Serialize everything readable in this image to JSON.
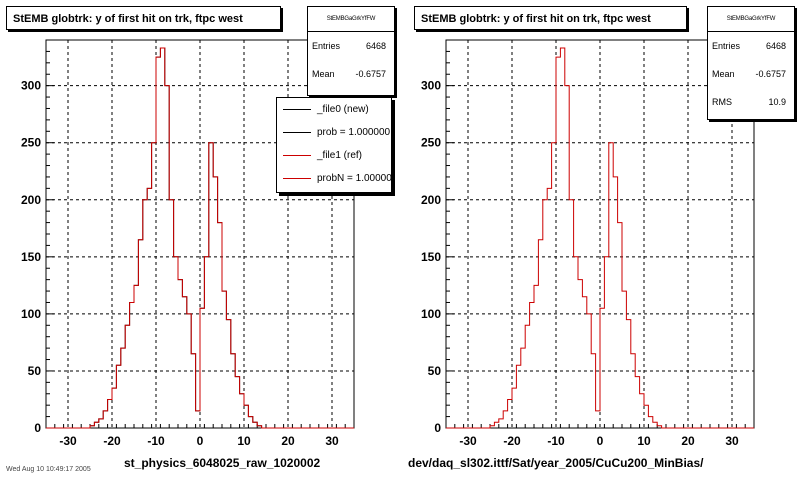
{
  "colors": {
    "new": "#000000",
    "ref": "#cc0000",
    "grid": "#000000"
  },
  "panels": [
    {
      "title": "StEMB globtrk: y of first hit on trk, ftpc west",
      "stats_name": "StEMBGaGrkYfFW",
      "stats": [
        {
          "label": "Entries",
          "value": "6468"
        },
        {
          "label": "Mean",
          "value": "-0.6757"
        }
      ],
      "legend": [
        {
          "label": "_file0 (new)",
          "color": "#000000"
        },
        {
          "label": "prob = 1.000000",
          "color": "#000000"
        },
        {
          "label": "_file1 (ref)",
          "color": "#cc0000"
        },
        {
          "label": "probN = 1.000000",
          "color": "#cc0000"
        }
      ],
      "xlabel": "st_physics_6048025_raw_1020002"
    },
    {
      "title": "StEMB globtrk: y of first hit on trk, ftpc west",
      "stats_name": "StEMBGaGrkYfFW",
      "stats": [
        {
          "label": "Entries",
          "value": "6468"
        },
        {
          "label": "Mean",
          "value": "-0.6757"
        },
        {
          "label": "RMS",
          "value": "10.9"
        }
      ],
      "legend": [],
      "xlabel": "dev/daq_sl302.ittf/Sat/year_2005/CuCu200_MinBias/"
    }
  ],
  "footer": "Wed Aug 10 10:49:17 2005",
  "chart_data": [
    {
      "type": "step-histogram",
      "title": "StEMB globtrk: y of first hit on trk, ftpc west",
      "xlabel": "st_physics_6048025_raw_1020002",
      "xlim": [
        -35,
        35
      ],
      "ylim": [
        0,
        340
      ],
      "xticks": [
        -30,
        -20,
        -10,
        0,
        10,
        20,
        30
      ],
      "yticks": [
        0,
        50,
        100,
        150,
        200,
        250,
        300
      ],
      "grid": true,
      "legend_position": "top-right",
      "bin_width": 1,
      "bin_start": -35,
      "series": [
        {
          "name": "_file0 (new)",
          "color": "#000000",
          "values": [
            0,
            0,
            0,
            0,
            0,
            0,
            0,
            0,
            0,
            0,
            2,
            5,
            8,
            15,
            25,
            35,
            55,
            70,
            90,
            110,
            125,
            165,
            200,
            210,
            250,
            325,
            333,
            300,
            200,
            150,
            130,
            115,
            100,
            65,
            15,
            105,
            150,
            250,
            220,
            180,
            120,
            95,
            65,
            45,
            30,
            20,
            10,
            5,
            2,
            0,
            0,
            0,
            0,
            0,
            0,
            0,
            0,
            0,
            0,
            0,
            0,
            0,
            0,
            0,
            0,
            0,
            0,
            0,
            0,
            0
          ]
        },
        {
          "name": "_file1 (ref)",
          "color": "#cc0000",
          "values": [
            0,
            0,
            0,
            0,
            0,
            0,
            0,
            0,
            0,
            0,
            2,
            5,
            8,
            15,
            25,
            35,
            55,
            70,
            90,
            110,
            125,
            165,
            200,
            210,
            250,
            325,
            333,
            300,
            200,
            150,
            130,
            115,
            100,
            65,
            15,
            105,
            150,
            250,
            220,
            180,
            120,
            95,
            65,
            45,
            30,
            20,
            10,
            5,
            2,
            0,
            0,
            0,
            0,
            0,
            0,
            0,
            0,
            0,
            0,
            0,
            0,
            0,
            0,
            0,
            0,
            0,
            0,
            0,
            0,
            0
          ]
        }
      ]
    },
    {
      "type": "step-histogram",
      "title": "StEMB globtrk: y of first hit on trk, ftpc west",
      "xlabel": "dev/daq_sl302.ittf/Sat/year_2005/CuCu200_MinBias/",
      "xlim": [
        -35,
        35
      ],
      "ylim": [
        0,
        340
      ],
      "xticks": [
        -30,
        -20,
        -10,
        0,
        10,
        20,
        30
      ],
      "yticks": [
        0,
        50,
        100,
        150,
        200,
        250,
        300
      ],
      "grid": true,
      "bin_width": 1,
      "bin_start": -35,
      "series": [
        {
          "name": "_file1 (ref)",
          "color": "#cc0000",
          "values": [
            0,
            0,
            0,
            0,
            0,
            0,
            0,
            0,
            0,
            0,
            2,
            5,
            8,
            15,
            25,
            35,
            55,
            70,
            90,
            110,
            125,
            165,
            200,
            210,
            250,
            325,
            333,
            300,
            200,
            150,
            130,
            115,
            100,
            65,
            15,
            105,
            150,
            250,
            220,
            180,
            120,
            95,
            65,
            45,
            30,
            20,
            10,
            5,
            2,
            0,
            0,
            0,
            0,
            0,
            0,
            0,
            0,
            0,
            0,
            0,
            0,
            0,
            0,
            0,
            0,
            0,
            0,
            0,
            0,
            0
          ]
        }
      ]
    }
  ]
}
